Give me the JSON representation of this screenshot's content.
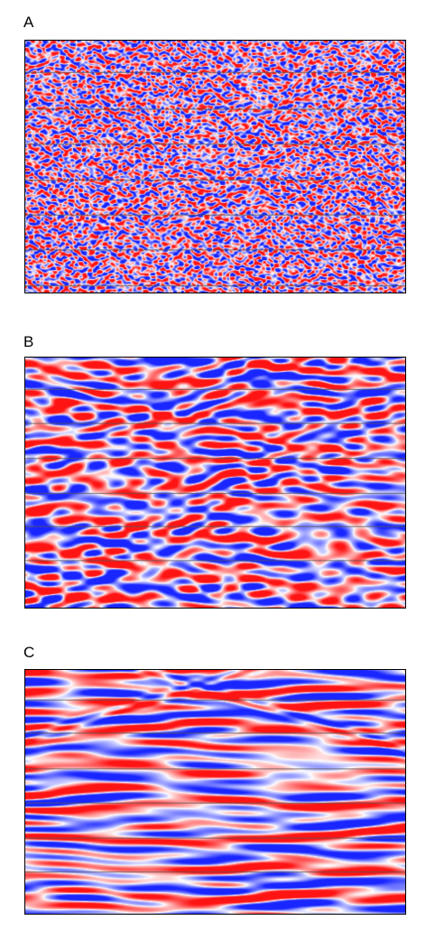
{
  "panels": [
    {
      "label": "A",
      "texture": "high-frequency-noise"
    },
    {
      "label": "B",
      "texture": "medium-frequency-reflectors"
    },
    {
      "label": "C",
      "texture": "low-frequency-layered-reflectors"
    }
  ],
  "colors": {
    "positive": "#e02020",
    "negative": "#2030e0",
    "background": "#ffffff",
    "trace_lines": "#555555"
  }
}
